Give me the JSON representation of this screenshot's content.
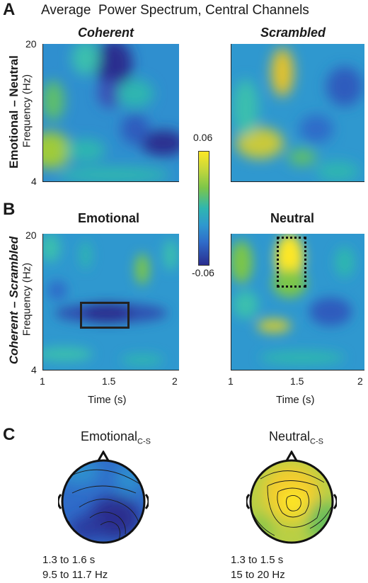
{
  "figure": {
    "title": "Average  Power Spectrum, Central Channels",
    "panels": {
      "a": "A",
      "b": "B",
      "c": "C"
    }
  },
  "row_a": {
    "row_label": "Emotional – Neutral",
    "col1_title": "Coherent",
    "col2_title": "Scrambled"
  },
  "row_b": {
    "row_label": "Coherent – Scrambled",
    "col1_title": "Emotional",
    "col2_title": "Neutral"
  },
  "axes": {
    "y_label": "Frequency (Hz)",
    "x_label": "Time (s)",
    "y_ticks": [
      "20",
      "4"
    ],
    "x_ticks": [
      "1",
      "1.5",
      "2"
    ]
  },
  "colorbar": {
    "max_label": "0.06",
    "min_label": "-0.06"
  },
  "topo": {
    "left_title": "Emotional",
    "left_sub": "C-S",
    "left_time": "1.3 to 1.6 s",
    "left_freq": "9.5 to 11.7 Hz",
    "right_title": "Neutral",
    "right_sub": "C-S",
    "right_time": "1.3 to 1.5 s",
    "right_freq": "15 to 20 Hz"
  },
  "colors": {
    "deep_blue": "#2a2d8f",
    "blue": "#2f79c9",
    "teal": "#2fb6b0",
    "green": "#7cc64a",
    "yellow": "#fde725"
  }
}
